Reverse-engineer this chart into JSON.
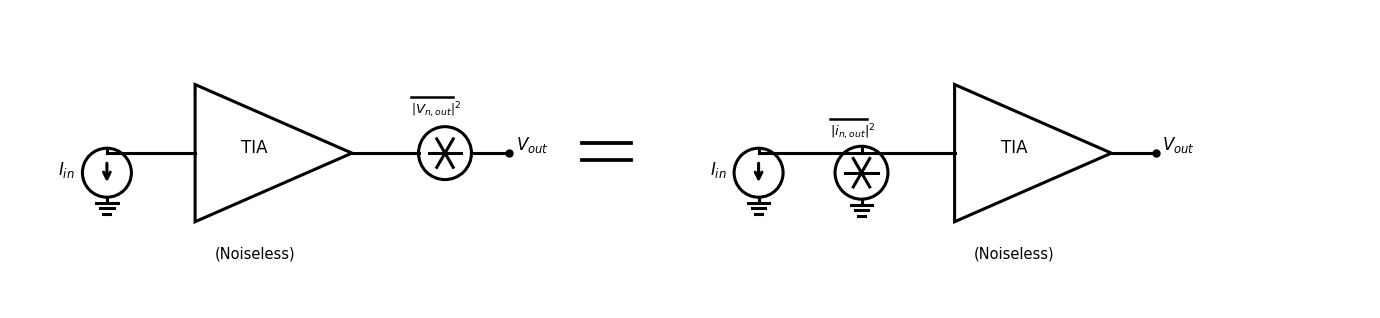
{
  "bg_color": "#ffffff",
  "line_color": "#000000",
  "line_width": 2.2,
  "figsize": [
    13.8,
    3.18
  ],
  "dpi": 100,
  "xlim": [
    0,
    138
  ],
  "ylim": [
    0,
    31.8
  ]
}
